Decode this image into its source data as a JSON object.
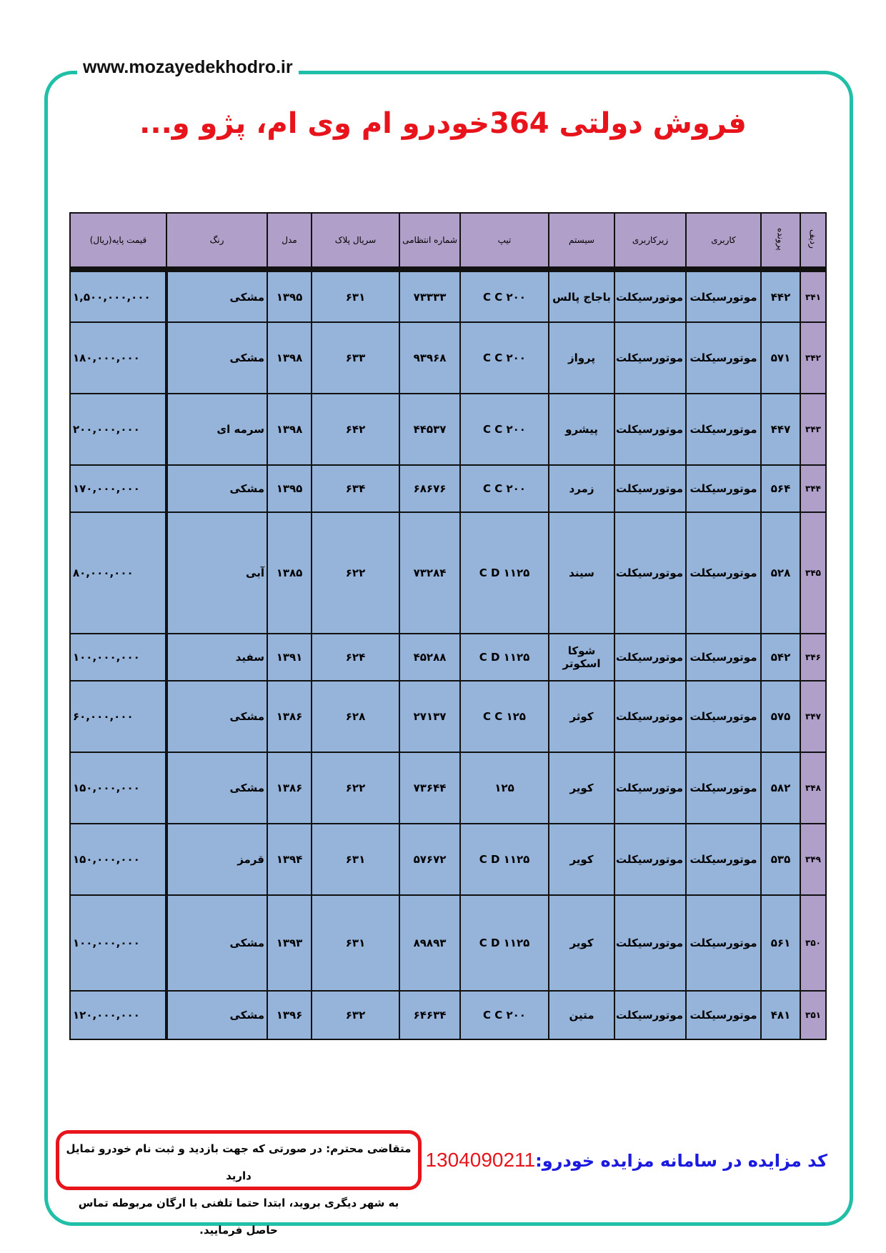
{
  "site": "www.mozayedekhodro.ir",
  "title": "فروش دولتی 364خودرو ام وی ام، پژو و...",
  "colors": {
    "frame": "#1fbfa8",
    "title": "#e8141c",
    "header_bg": "#b09fc8",
    "row_bg": "#96b3d9",
    "code_label": "#1a1ae0"
  },
  "headers": [
    "ردیف",
    "پرونده",
    "کاربری",
    "زیرکاربری",
    "سیستم",
    "تیپ",
    "شماره انتظامی",
    "سریال پلاک",
    "مدل",
    "رنگ",
    "قیمت پایه(ریال)"
  ],
  "rows": [
    [
      "۳۴۱",
      "۴۴۲",
      "موتورسیکلت",
      "موتورسیکلت",
      "باجاج پالس",
      "C C ۲۰۰",
      "۷۳۳۳۳",
      "۶۳۱",
      "۱۳۹۵",
      "مشکی",
      "۱,۵۰۰,۰۰۰,۰۰۰"
    ],
    [
      "۳۴۲",
      "۵۷۱",
      "موتورسیکلت",
      "موتورسیکلت",
      "پرواز",
      "C C ۲۰۰",
      "۹۳۹۶۸",
      "۶۳۳",
      "۱۳۹۸",
      "مشکی",
      "۱۸۰,۰۰۰,۰۰۰"
    ],
    [
      "۳۴۳",
      "۴۴۷",
      "موتورسیکلت",
      "موتورسیکلت",
      "پیشرو",
      "C C ۲۰۰",
      "۴۴۵۳۷",
      "۶۴۲",
      "۱۳۹۸",
      "سرمه ای",
      "۲۰۰,۰۰۰,۰۰۰"
    ],
    [
      "۳۴۴",
      "۵۶۴",
      "موتورسیکلت",
      "موتورسیکلت",
      "زمرد",
      "C C ۲۰۰",
      "۶۸۶۷۶",
      "۶۳۴",
      "۱۳۹۵",
      "مشکی",
      "۱۷۰,۰۰۰,۰۰۰"
    ],
    [
      "۳۴۵",
      "۵۲۸",
      "موتورسیکلت",
      "موتورسیکلت",
      "سیند",
      "C D ۱۱۲۵",
      "۷۳۲۸۴",
      "۶۲۲",
      "۱۳۸۵",
      "آبی",
      "۸۰,۰۰۰,۰۰۰"
    ],
    [
      "۳۴۶",
      "۵۴۲",
      "موتورسیکلت",
      "موتورسیکلت",
      "شوکا اسکوتر",
      "C D ۱۱۲۵",
      "۴۵۲۸۸",
      "۶۲۴",
      "۱۳۹۱",
      "سفید",
      "۱۰۰,۰۰۰,۰۰۰"
    ],
    [
      "۳۴۷",
      "۵۷۵",
      "موتورسیکلت",
      "موتورسیکلت",
      "کوثر",
      "C C ۱۲۵",
      "۲۷۱۳۷",
      "۶۲۸",
      "۱۳۸۶",
      "مشکی",
      "۶۰,۰۰۰,۰۰۰"
    ],
    [
      "۳۴۸",
      "۵۸۲",
      "موتورسیکلت",
      "موتورسیکلت",
      "کویر",
      "۱۲۵",
      "۷۳۶۴۴",
      "۶۲۲",
      "۱۳۸۶",
      "مشکی",
      "۱۵۰,۰۰۰,۰۰۰"
    ],
    [
      "۳۴۹",
      "۵۳۵",
      "موتورسیکلت",
      "موتورسیکلت",
      "کویر",
      "C D ۱۱۲۵",
      "۵۷۶۷۲",
      "۶۳۱",
      "۱۳۹۴",
      "قرمز",
      "۱۵۰,۰۰۰,۰۰۰"
    ],
    [
      "۳۵۰",
      "۵۶۱",
      "موتورسیکلت",
      "موتورسیکلت",
      "کویر",
      "C D ۱۱۲۵",
      "۸۹۸۹۳",
      "۶۳۱",
      "۱۳۹۳",
      "مشکی",
      "۱۰۰,۰۰۰,۰۰۰"
    ],
    [
      "۳۵۱",
      "۴۸۱",
      "موتورسیکلت",
      "موتورسیکلت",
      "متین",
      "C C ۲۰۰",
      "۶۴۶۳۴",
      "۶۳۲",
      "۱۳۹۶",
      "مشکی",
      "۱۲۰,۰۰۰,۰۰۰"
    ]
  ],
  "notice": {
    "line1": "متقاضی محترم: در صورتی که جهت بازدید و ثبت نام خودرو تمایل دارید",
    "line2": "به شهر دیگری بروید، ابتدا حتما تلفنی با ارگان مربوطه تماس حاصل فرمایید."
  },
  "auction_code": {
    "label": "کد مزایده در سامانه مزایده خودرو:",
    "value": "1304090211"
  }
}
